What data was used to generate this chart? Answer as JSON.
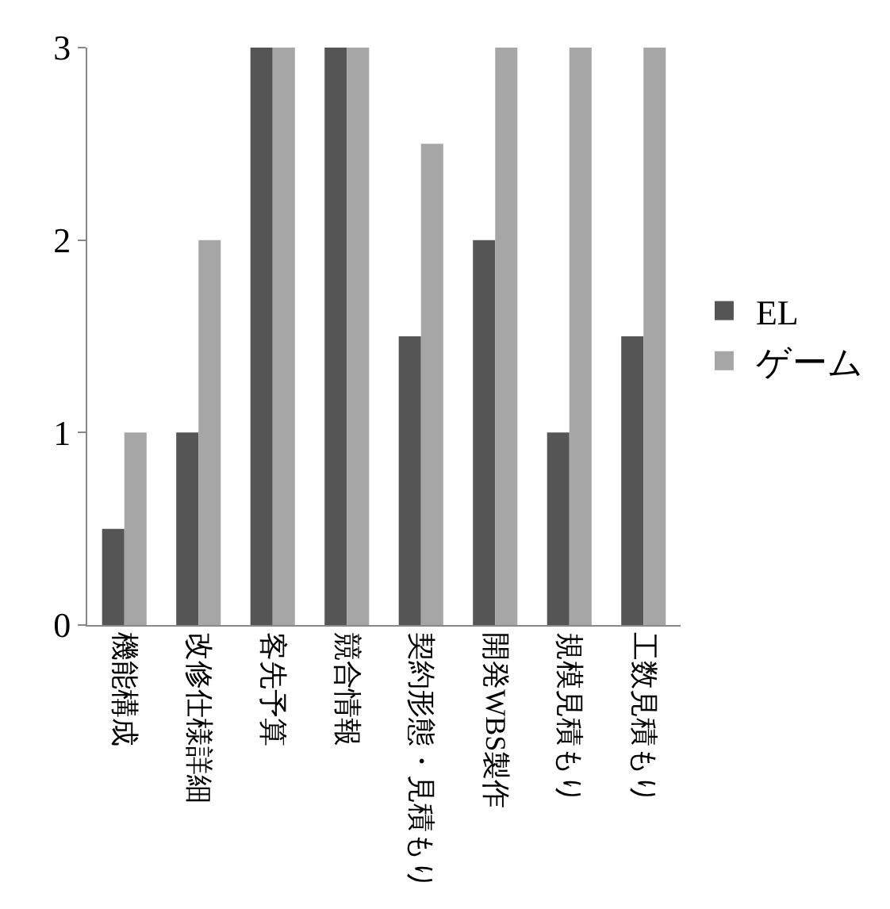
{
  "chart_data": {
    "type": "bar",
    "categories": [
      "機能構成",
      "改修仕様詳細",
      "客先予算",
      "競合情報",
      "契約形態・見積もり",
      "開発WBS製作",
      "規模見積もり",
      "工数見積もり"
    ],
    "series": [
      {
        "name": "EL",
        "color": "#555555",
        "values": [
          0.5,
          1,
          3,
          3,
          1.5,
          2,
          1,
          1.5
        ]
      },
      {
        "name": "ゲーム",
        "color": "#a6a6a6",
        "values": [
          1,
          2,
          3,
          3,
          2.5,
          3,
          3,
          3
        ]
      }
    ],
    "ylim": [
      0,
      3
    ],
    "yticks": [
      0,
      1,
      2,
      3
    ],
    "grid": false,
    "legend": "right"
  }
}
